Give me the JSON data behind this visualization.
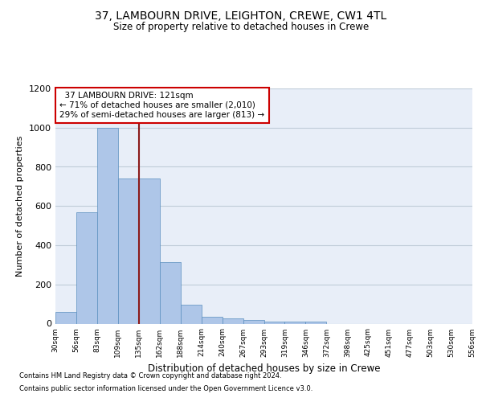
{
  "title": "37, LAMBOURN DRIVE, LEIGHTON, CREWE, CW1 4TL",
  "subtitle": "Size of property relative to detached houses in Crewe",
  "xlabel": "Distribution of detached houses by size in Crewe",
  "ylabel": "Number of detached properties",
  "bar_values": [
    60,
    570,
    1000,
    740,
    740,
    315,
    95,
    35,
    25,
    20,
    10,
    10,
    10,
    0,
    0,
    0,
    0,
    0,
    0,
    0
  ],
  "bar_labels": [
    "30sqm",
    "56sqm",
    "83sqm",
    "109sqm",
    "135sqm",
    "162sqm",
    "188sqm",
    "214sqm",
    "240sqm",
    "267sqm",
    "293sqm",
    "319sqm",
    "346sqm",
    "372sqm",
    "398sqm",
    "425sqm",
    "451sqm",
    "477sqm",
    "503sqm",
    "530sqm",
    "556sqm"
  ],
  "bar_color": "#aec6e8",
  "bar_edge_color": "#5a8fbf",
  "vline_color": "#8b1a1a",
  "vline_pos": 3.5,
  "annotation_text": "  37 LAMBOURN DRIVE: 121sqm\n← 71% of detached houses are smaller (2,010)\n29% of semi-detached houses are larger (813) →",
  "annotation_box_color": "#ffffff",
  "annotation_box_edge": "#cc0000",
  "ylim": [
    0,
    1200
  ],
  "yticks": [
    0,
    200,
    400,
    600,
    800,
    1000,
    1200
  ],
  "footer_line1": "Contains HM Land Registry data © Crown copyright and database right 2024.",
  "footer_line2": "Contains public sector information licensed under the Open Government Licence v3.0.",
  "background_color": "#e8eef8",
  "grid_color": "#c0ccd8",
  "title_fontsize": 10,
  "subtitle_fontsize": 8.5
}
